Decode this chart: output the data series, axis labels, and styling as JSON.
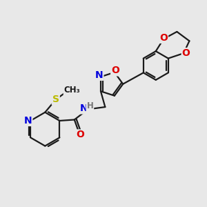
{
  "background_color": "#e8e8e8",
  "bond_color": "#1a1a1a",
  "atom_colors": {
    "N": "#0000dd",
    "O": "#dd0000",
    "S": "#bbbb00",
    "H": "#777777",
    "C": "#1a1a1a"
  },
  "figsize": [
    3.0,
    3.0
  ],
  "dpi": 100,
  "xlim": [
    0,
    10
  ],
  "ylim": [
    0,
    10
  ]
}
